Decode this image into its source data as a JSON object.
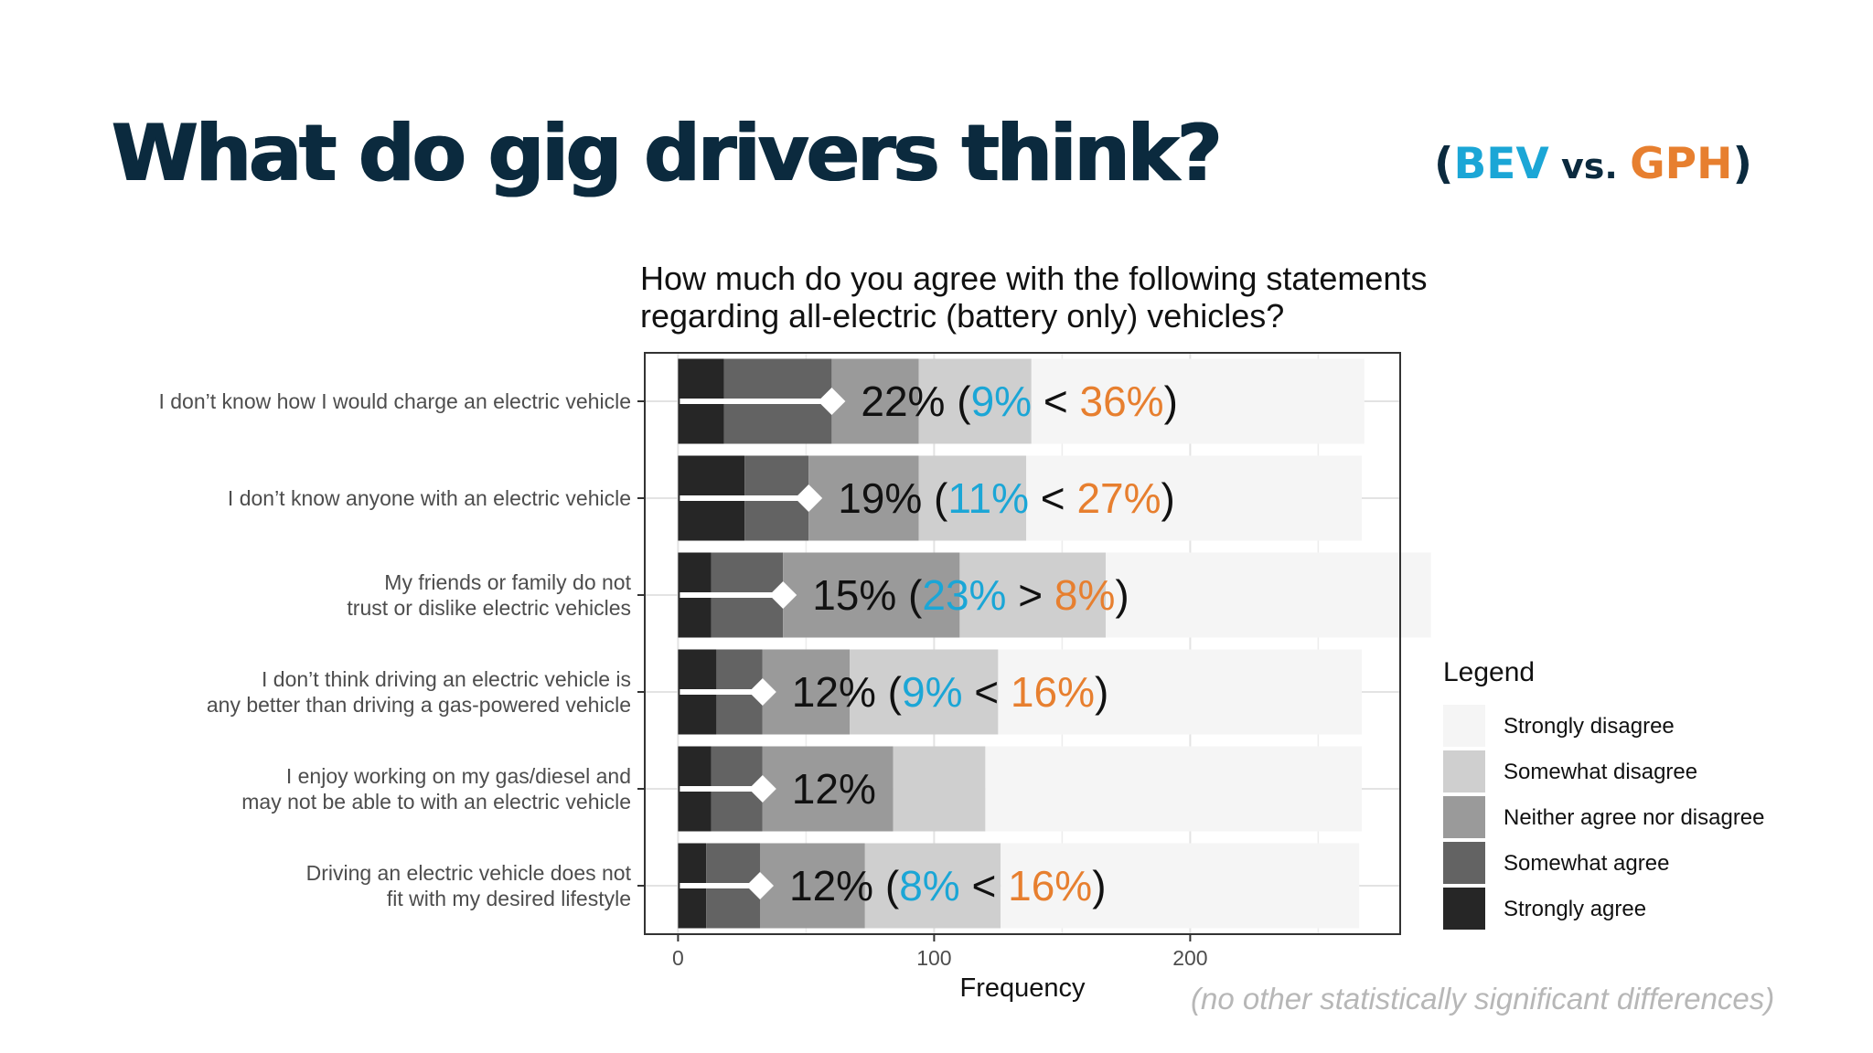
{
  "header": {
    "title": "What do gig drivers think?",
    "compare_open": "(",
    "compare_a": "BEV",
    "compare_vs": " vs. ",
    "compare_b": "GPH",
    "compare_close": ")",
    "color_a": "#1ba6d6",
    "color_b": "#e77f2f",
    "title_color": "#0b2a3e"
  },
  "footnote": "(no other statistically significant differences)",
  "chart_data": {
    "type": "bar",
    "orientation": "horizontal",
    "stacked": true,
    "title": "How much do you agree with the following statements regarding all-electric (battery only) vehicles?",
    "title_lines": [
      "How much do you agree with the following statements",
      "regarding all-electric (battery only) vehicles?"
    ],
    "xlabel": "Frequency",
    "ylabel": "",
    "xlim": [
      -13,
      282
    ],
    "xticks": [
      0,
      100,
      200
    ],
    "grid": true,
    "legend_title": "Legend",
    "legend_position": "right",
    "categories": [
      [
        "I don’t know how I would charge an electric vehicle"
      ],
      [
        "I don’t know anyone with an electric vehicle"
      ],
      [
        "My friends or family do not",
        "trust or dislike electric vehicles"
      ],
      [
        "I don’t think driving an electric vehicle is",
        "any better than driving a gas-powered vehicle"
      ],
      [
        "I enjoy working on my gas/diesel and",
        "may not be able to with an electric vehicle"
      ],
      [
        "Driving an electric vehicle does not",
        "fit with my desired lifestyle"
      ]
    ],
    "series": [
      {
        "name": "Strongly agree",
        "color": "#262626",
        "values": [
          18,
          26,
          13,
          15,
          13,
          11
        ]
      },
      {
        "name": "Somewhat agree",
        "color": "#636363",
        "values": [
          42,
          25,
          28,
          18,
          20,
          21
        ]
      },
      {
        "name": "Neither agree nor disagree",
        "color": "#9a9a9a",
        "values": [
          34,
          43,
          69,
          34,
          51,
          41
        ]
      },
      {
        "name": "Somewhat disagree",
        "color": "#cfcfcf",
        "values": [
          44,
          42,
          57,
          58,
          36,
          53
        ]
      },
      {
        "name": "Strongly disagree",
        "color": "#f5f5f5",
        "values": [
          130,
          131,
          127,
          142,
          147,
          140
        ]
      }
    ],
    "agree_pct": [
      22,
      19,
      15,
      12,
      12,
      12
    ],
    "annotations": [
      {
        "pct": "22%",
        "bev": "9%",
        "op": "<",
        "gph": "36%"
      },
      {
        "pct": "19%",
        "bev": "11%",
        "op": "<",
        "gph": "27%"
      },
      {
        "pct": "15%",
        "bev": "23%",
        "op": ">",
        "gph": "8%"
      },
      {
        "pct": "12%",
        "bev": "9%",
        "op": "<",
        "gph": "16%"
      },
      {
        "pct": "12%"
      },
      {
        "pct": "12%",
        "bev": "8%",
        "op": "<",
        "gph": "16%"
      }
    ]
  }
}
